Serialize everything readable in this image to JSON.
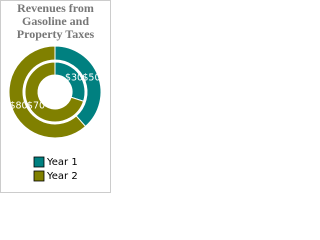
{
  "chart_data": {
    "type": "nested-donut",
    "title": "Revenues from Gasoline and Property Taxes",
    "categories": [
      "Year 1",
      "Year 2"
    ],
    "colors": [
      "#008080",
      "#808000"
    ],
    "rings": [
      {
        "values": [
          50,
          80
        ],
        "value_labels": [
          "$50",
          "$80"
        ]
      },
      {
        "values": [
          30,
          70
        ],
        "value_labels": [
          "$30",
          "$70"
        ]
      }
    ]
  }
}
